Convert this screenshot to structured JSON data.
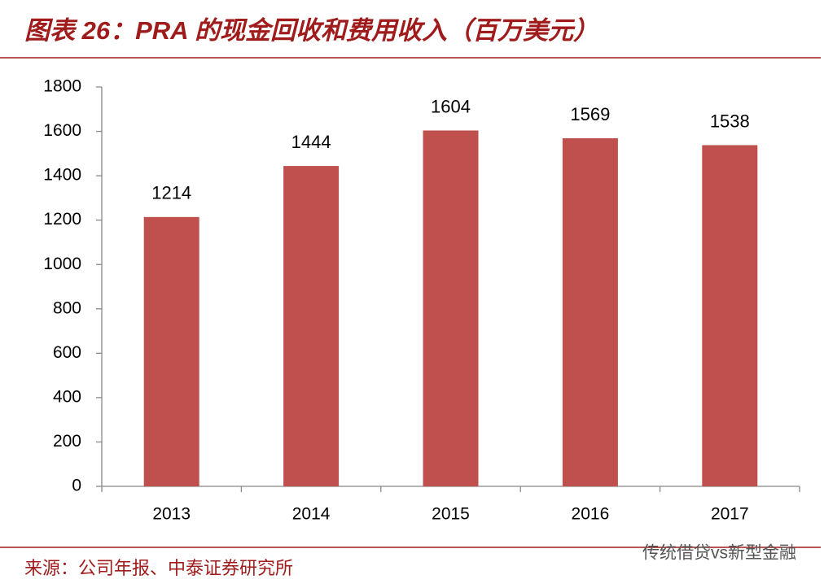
{
  "chart_data": {
    "type": "bar",
    "title": "图表 26：PRA 的现金回收和费用收入（百万美元）",
    "categories": [
      "2013",
      "2014",
      "2015",
      "2016",
      "2017"
    ],
    "values": [
      1214,
      1444,
      1604,
      1569,
      1538
    ],
    "color": "#c0504d",
    "ylim": [
      0,
      1800
    ],
    "yticks": [
      0,
      200,
      400,
      600,
      800,
      1000,
      1200,
      1400,
      1600,
      1800
    ],
    "grid": false,
    "source": "来源：公司年报、中泰证券研究所",
    "watermark": "传统借贷vs新型金融"
  }
}
